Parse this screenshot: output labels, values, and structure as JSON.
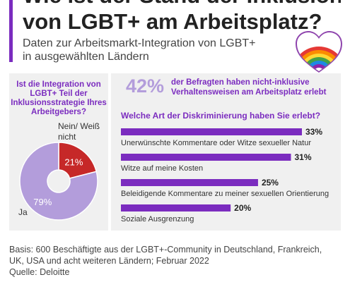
{
  "header": {
    "title_line1": "Wie ist der Stand der Inklusion",
    "title_line2": "von LGBT+ am Arbeitsplatz?",
    "subtitle_line1": "Daten zur Arbeitsmarkt-Integration von LGBT+",
    "subtitle_line2": "in ausgewählten Ländern"
  },
  "colors": {
    "accent": "#7b2cbf",
    "light_purple": "#b39ddb",
    "red": "#c62828",
    "panel": "#f0f0f0"
  },
  "icons": {
    "heart": "rainbow-heart-icon"
  },
  "stat": {
    "value": "42%",
    "text": "der Befragten haben nicht-inklusive Verhaltensweisen am Arbeitsplatz erlebt"
  },
  "chart_data": [
    {
      "type": "pie",
      "title": "Ist die Integration von LGBT+ Teil der Inklusionsstrategie Ihres Arbeitgebers?",
      "slices": [
        {
          "name": "Nein/ Weiß nicht",
          "value": 21,
          "label": "21%",
          "color": "#c62828"
        },
        {
          "name": "Ja",
          "value": 79,
          "label": "79%",
          "color": "#b39ddb"
        }
      ]
    },
    {
      "type": "bar",
      "orientation": "horizontal",
      "title": "Welche Art der Diskriminierung haben Sie erlebt?",
      "xlim": [
        0,
        33
      ],
      "color": "#7b2cbf",
      "categories": [
        "Unerwünschte Kommentare oder Witze sexueller Natur",
        "Witze auf meine Kosten",
        "Beleidigende Kommentare zu meiner sexuellen Orientierung",
        "Soziale Ausgrenzung"
      ],
      "values": [
        33,
        31,
        25,
        20
      ],
      "labels": [
        "33%",
        "31%",
        "25%",
        "20%"
      ]
    }
  ],
  "footer": {
    "line1": "Basis: 600 Beschäftigte aus der LGBT+-Community in Deutschland, Frankreich,",
    "line2": "UK, USA und acht weiteren Ländern; Februar 2022",
    "line3": "Quelle: Deloitte"
  }
}
